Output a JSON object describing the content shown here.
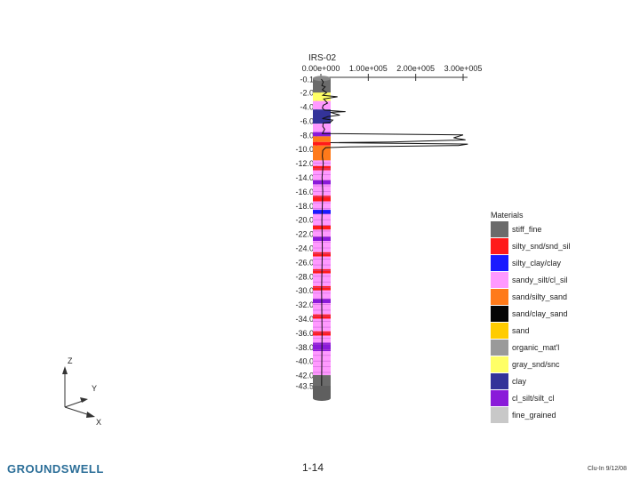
{
  "chart_data": {
    "type": "line",
    "title": "IRS-02",
    "x_ticks": [
      "0.00e+000",
      "1.00e+005",
      "2.00e+005",
      "3.00e+005"
    ],
    "x_tick_values": [
      0,
      100000,
      200000,
      300000
    ],
    "xlim": [
      0,
      320000
    ],
    "depth_labels": [
      "-0.1",
      "-2.0",
      "-4.0",
      "-6.0",
      "-8.0",
      "-10.0",
      "-12.0",
      "-14.0",
      "-16.0",
      "-18.0",
      "-20.0",
      "-22.0",
      "-24.0",
      "-26.0",
      "-28.0",
      "-30.0",
      "-32.0",
      "-34.0",
      "-36.0",
      "-38.0",
      "-40.0",
      "-42.0",
      "-43.5"
    ],
    "depth_values": [
      -0.1,
      -2,
      -4,
      -6,
      -8,
      -10,
      -12,
      -14,
      -16,
      -18,
      -20,
      -22,
      -24,
      -26,
      -28,
      -30,
      -32,
      -34,
      -36,
      -38,
      -40,
      -42,
      -43.5
    ],
    "ylim": [
      -43.5,
      -0.1
    ],
    "series": [
      {
        "name": "log",
        "points": [
          [
            1000,
            -0.1
          ],
          [
            5000,
            -0.5
          ],
          [
            2000,
            -1.0
          ],
          [
            9000,
            -1.2
          ],
          [
            3000,
            -1.6
          ],
          [
            12000,
            -2.0
          ],
          [
            4000,
            -2.4
          ],
          [
            35000,
            -2.6
          ],
          [
            6000,
            -2.9
          ],
          [
            14000,
            -3.5
          ],
          [
            5000,
            -3.8
          ],
          [
            3000,
            -4.2
          ],
          [
            8000,
            -4.5
          ],
          [
            52000,
            -4.7
          ],
          [
            20000,
            -4.8
          ],
          [
            40000,
            -5.2
          ],
          [
            15000,
            -5.4
          ],
          [
            3000,
            -5.7
          ],
          [
            25000,
            -5.9
          ],
          [
            20000,
            -6.2
          ],
          [
            5000,
            -6.3
          ],
          [
            4000,
            -6.8
          ],
          [
            8000,
            -7.2
          ],
          [
            3000,
            -7.8
          ],
          [
            300000,
            -8.0
          ],
          [
            280000,
            -8.4
          ],
          [
            305000,
            -8.7
          ],
          [
            150000,
            -9.0
          ],
          [
            20000,
            -9.1
          ],
          [
            310000,
            -9.3
          ],
          [
            290000,
            -9.5
          ],
          [
            60000,
            -9.7
          ],
          [
            10000,
            -9.8
          ],
          [
            4000,
            -10.2
          ],
          [
            3000,
            -11.0
          ],
          [
            5000,
            -12.0
          ],
          [
            2500,
            -14.0
          ],
          [
            4000,
            -16.0
          ],
          [
            2000,
            -20.0
          ],
          [
            3000,
            -24.0
          ],
          [
            1500,
            -30.0
          ],
          [
            2500,
            -36.0
          ],
          [
            1500,
            -43.5
          ]
        ]
      }
    ],
    "core_layers": [
      {
        "top": 0,
        "bottom": 2,
        "material": "stiff_fine"
      },
      {
        "top": 2,
        "bottom": 3.2,
        "material": "gray_snd/snc"
      },
      {
        "top": 3.2,
        "bottom": 4.4,
        "material": "sandy_silt/cl_sil"
      },
      {
        "top": 4.4,
        "bottom": 6.4,
        "material": "clay"
      },
      {
        "top": 6.4,
        "bottom": 7.6,
        "material": "sandy_silt/cl_sil"
      },
      {
        "top": 7.6,
        "bottom": 8.2,
        "material": "cl_silt/silt_cl"
      },
      {
        "top": 8.2,
        "bottom": 9.0,
        "material": "sand/silty_sand"
      },
      {
        "top": 9.0,
        "bottom": 9.5,
        "material": "silty_snd/snd_sil"
      },
      {
        "top": 9.5,
        "bottom": 11.6,
        "material": "sand/silty_sand"
      },
      {
        "top": 11.6,
        "bottom": 12.4,
        "material": "sandy_silt/cl_sil"
      },
      {
        "top": 12.4,
        "bottom": 13.0,
        "material": "silty_snd/snd_sil"
      },
      {
        "top": 13.0,
        "bottom": 14.4,
        "material": "sandy_silt/cl_sil"
      },
      {
        "top": 14.4,
        "bottom": 15.0,
        "material": "cl_silt/silt_cl"
      },
      {
        "top": 15.0,
        "bottom": 16.6,
        "material": "sandy_silt/cl_sil"
      },
      {
        "top": 16.6,
        "bottom": 17.4,
        "material": "silty_snd/snd_sil"
      },
      {
        "top": 17.4,
        "bottom": 18.6,
        "material": "sandy_silt/cl_sil"
      },
      {
        "top": 18.6,
        "bottom": 19.2,
        "material": "silty_clay/clay"
      },
      {
        "top": 19.2,
        "bottom": 20.8,
        "material": "sandy_silt/cl_sil"
      },
      {
        "top": 20.8,
        "bottom": 21.4,
        "material": "silty_snd/snd_sil"
      },
      {
        "top": 21.4,
        "bottom": 22.4,
        "material": "sandy_silt/cl_sil"
      },
      {
        "top": 22.4,
        "bottom": 23.0,
        "material": "cl_silt/silt_cl"
      },
      {
        "top": 23.0,
        "bottom": 24.6,
        "material": "sandy_silt/cl_sil"
      },
      {
        "top": 24.6,
        "bottom": 25.2,
        "material": "silty_snd/snd_sil"
      },
      {
        "top": 25.2,
        "bottom": 27.0,
        "material": "sandy_silt/cl_sil"
      },
      {
        "top": 27.0,
        "bottom": 27.6,
        "material": "silty_snd/snd_sil"
      },
      {
        "top": 27.6,
        "bottom": 29.4,
        "material": "sandy_silt/cl_sil"
      },
      {
        "top": 29.4,
        "bottom": 30.0,
        "material": "silty_snd/snd_sil"
      },
      {
        "top": 30.0,
        "bottom": 31.2,
        "material": "sandy_silt/cl_sil"
      },
      {
        "top": 31.2,
        "bottom": 31.8,
        "material": "cl_silt/silt_cl"
      },
      {
        "top": 31.8,
        "bottom": 33.4,
        "material": "sandy_silt/cl_sil"
      },
      {
        "top": 33.4,
        "bottom": 34.0,
        "material": "silty_snd/snd_sil"
      },
      {
        "top": 34.0,
        "bottom": 35.8,
        "material": "sandy_silt/cl_sil"
      },
      {
        "top": 35.8,
        "bottom": 36.4,
        "material": "silty_snd/snd_sil"
      },
      {
        "top": 36.4,
        "bottom": 37.4,
        "material": "sandy_silt/cl_sil"
      },
      {
        "top": 37.4,
        "bottom": 38.6,
        "material": "cl_silt/silt_cl"
      },
      {
        "top": 38.6,
        "bottom": 42.0,
        "material": "sandy_silt/cl_sil"
      },
      {
        "top": 42.0,
        "bottom": 43.5,
        "material": "stiff_fine"
      }
    ],
    "legend_title": "Materials",
    "legend": [
      {
        "label": "stiff_fine",
        "color": "#6b6b6b"
      },
      {
        "label": "silty_snd/snd_sil",
        "color": "#ff1a1a"
      },
      {
        "label": "silty_clay/clay",
        "color": "#1a1aff"
      },
      {
        "label": "sandy_silt/cl_sil",
        "color": "#ff99ff"
      },
      {
        "label": "sand/silty_sand",
        "color": "#ff7a1a"
      },
      {
        "label": "sand/clay_sand",
        "color": "#050505"
      },
      {
        "label": "sand",
        "color": "#ffcc00"
      },
      {
        "label": "organic_mat'l",
        "color": "#9a9a9a"
      },
      {
        "label": "gray_snd/snc",
        "color": "#ffff66"
      },
      {
        "label": "clay",
        "color": "#333399"
      },
      {
        "label": "cl_silt/silt_cl",
        "color": "#8a1ad9"
      },
      {
        "label": "fine_grained",
        "color": "#c8c8c8"
      }
    ],
    "axes_triad": {
      "x": "X",
      "y": "Y",
      "z": "Z"
    }
  },
  "footer": {
    "brand": "GROUNDSWELL",
    "page_number": "1-14",
    "credit": "Clu-In 9/12/08"
  }
}
